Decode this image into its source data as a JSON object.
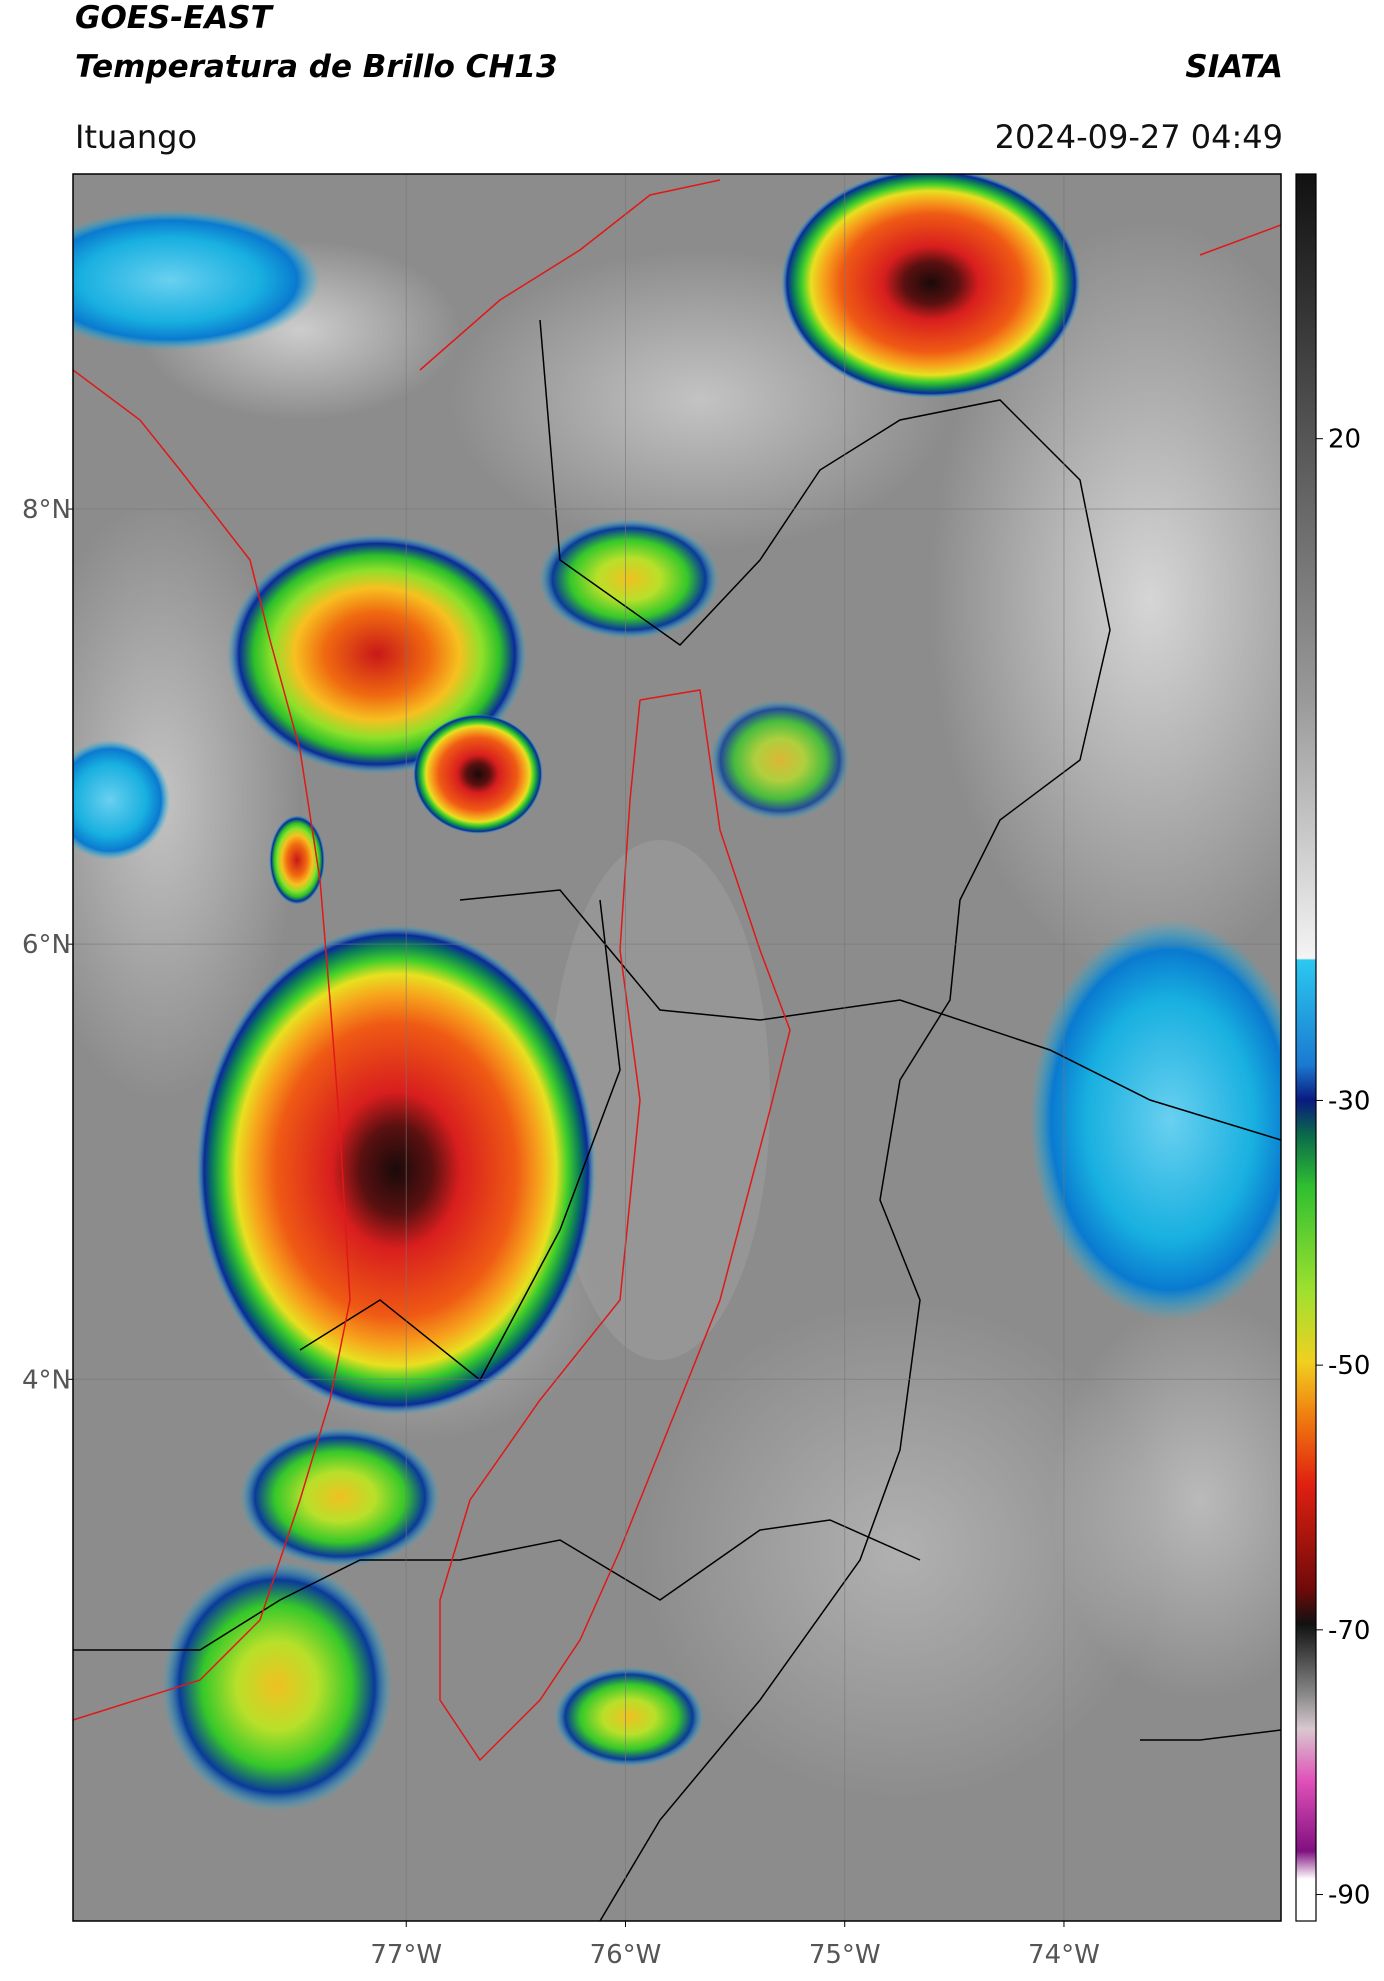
{
  "header": {
    "title": "GOES-EAST",
    "subtitle": "Temperatura de Brillo CH13",
    "source": "SIATA",
    "location": "Ituango",
    "datetime": "2024-09-27 04:49"
  },
  "map": {
    "xlim": [
      -78.52,
      -73.01
    ],
    "ylim": [
      1.51,
      9.54
    ],
    "xticks": [
      {
        "value": -77,
        "label": "77°W"
      },
      {
        "value": -76,
        "label": "76°W"
      },
      {
        "value": -75,
        "label": "75°W"
      },
      {
        "value": -74,
        "label": "74°W"
      }
    ],
    "yticks": [
      {
        "value": 8,
        "label": "8°N"
      },
      {
        "value": 6,
        "label": "6°N"
      },
      {
        "value": 4,
        "label": "4°N"
      }
    ],
    "grid": true,
    "colorbar": {
      "lim": [
        -92,
        40
      ],
      "ticks": [
        20,
        -30,
        -50,
        -70,
        -90
      ]
    }
  }
}
